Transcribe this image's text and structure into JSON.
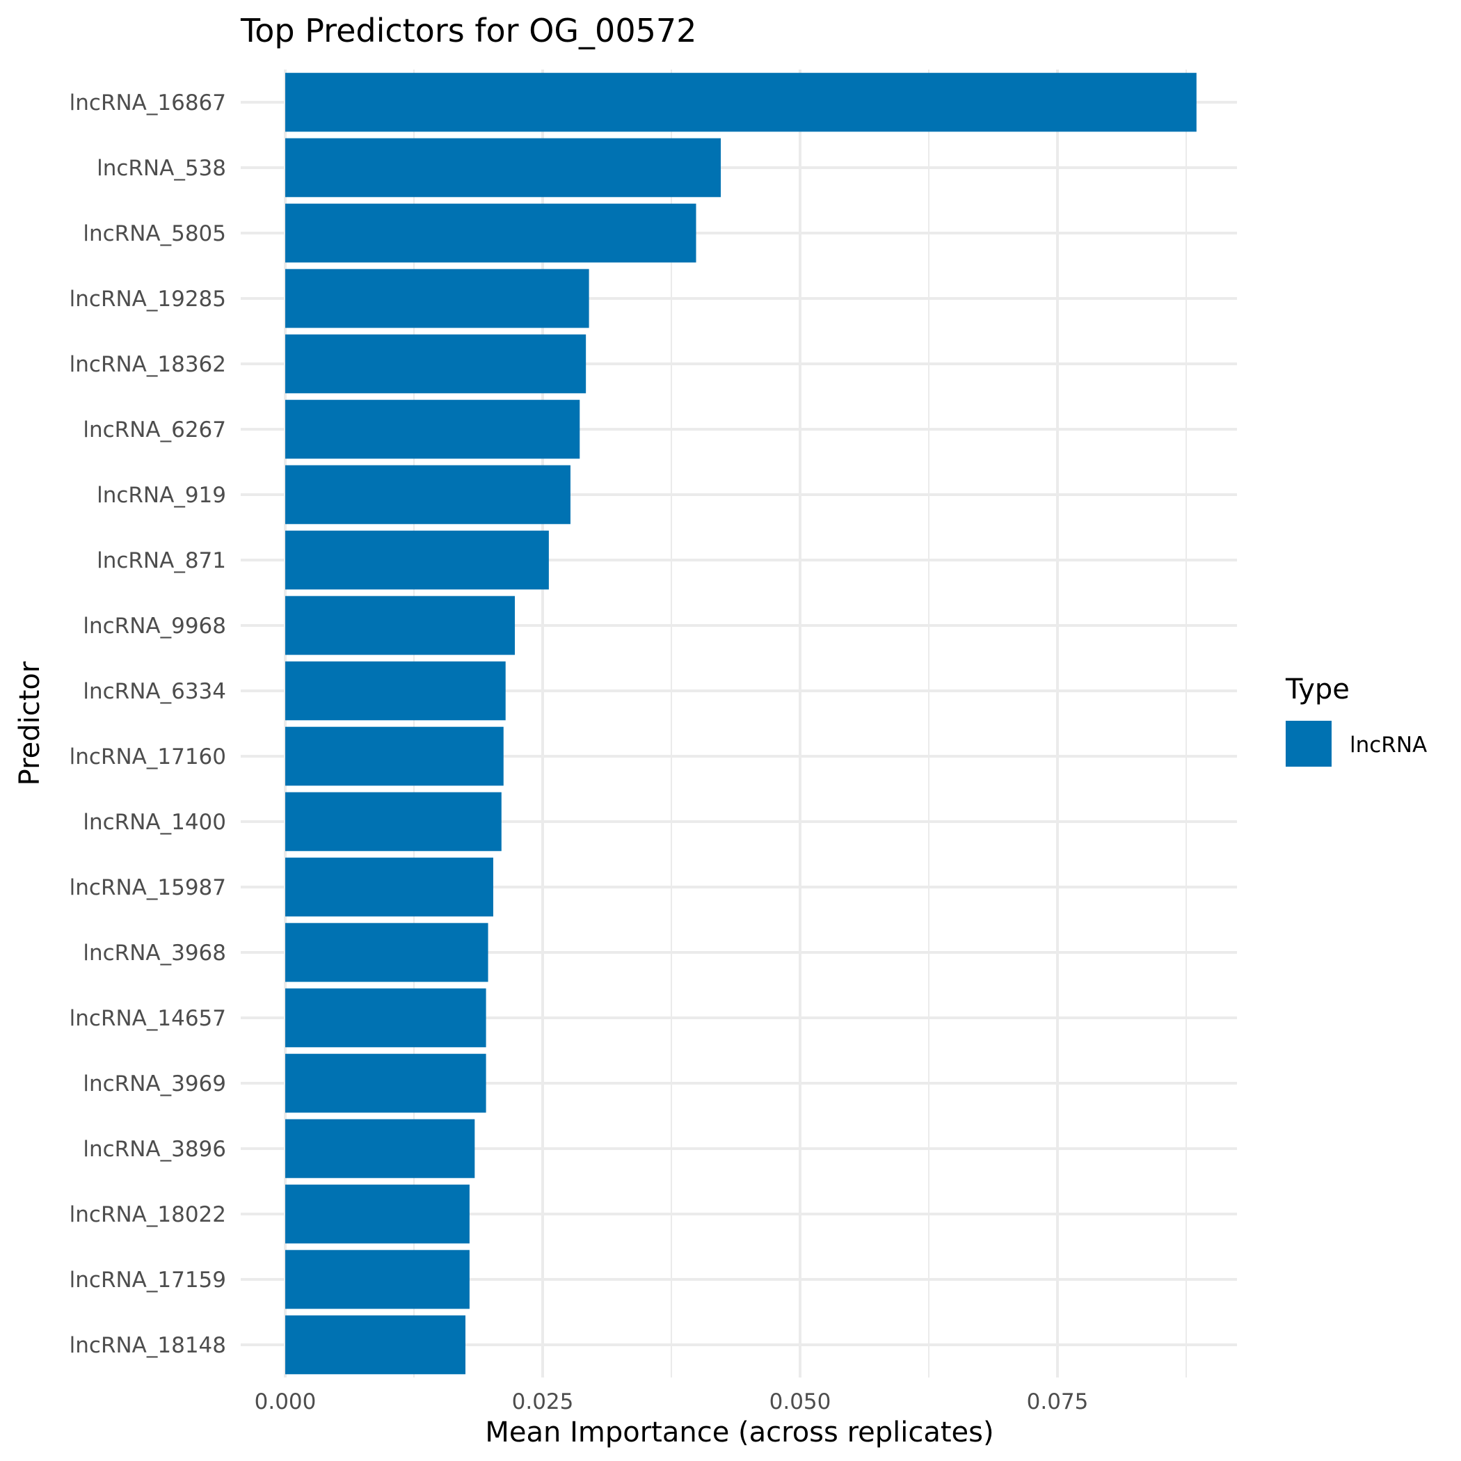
{
  "chart_data": {
    "type": "bar",
    "orientation": "horizontal",
    "title": "Top Predictors for OG_00572",
    "xlabel": "Mean Importance (across replicates)",
    "ylabel": "Predictor",
    "xlim": [
      0,
      0.0925
    ],
    "x_ticks": [
      "0.000",
      "0.025",
      "0.050",
      "0.075"
    ],
    "x_tick_values": [
      0,
      0.025,
      0.05,
      0.075
    ],
    "grid": true,
    "legend": {
      "title": "Type",
      "position": "right",
      "entries": [
        {
          "label": "lncRNA",
          "color": "#0072B2"
        }
      ]
    },
    "bar_color": "#0072B2",
    "categories": [
      "lncRNA_16867",
      "lncRNA_538",
      "lncRNA_5805",
      "lncRNA_19285",
      "lncRNA_18362",
      "lncRNA_6267",
      "lncRNA_919",
      "lncRNA_871",
      "lncRNA_9968",
      "lncRNA_6334",
      "lncRNA_17160",
      "lncRNA_1400",
      "lncRNA_15987",
      "lncRNA_3968",
      "lncRNA_14657",
      "lncRNA_3969",
      "lncRNA_3896",
      "lncRNA_18022",
      "lncRNA_17159",
      "lncRNA_18148"
    ],
    "values": [
      0.0885,
      0.0423,
      0.0399,
      0.0295,
      0.0292,
      0.0286,
      0.0277,
      0.0256,
      0.0223,
      0.0214,
      0.0212,
      0.021,
      0.0202,
      0.0197,
      0.0195,
      0.0195,
      0.0184,
      0.0179,
      0.0179,
      0.0175
    ]
  }
}
